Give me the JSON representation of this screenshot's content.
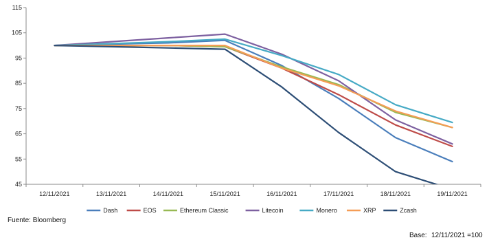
{
  "chart_data": {
    "type": "line",
    "title": "",
    "xlabel": "",
    "ylabel": "",
    "ylim": [
      45,
      115
    ],
    "yticks": [
      45,
      55,
      65,
      75,
      85,
      95,
      105,
      115
    ],
    "grid": false,
    "legend_position": "bottom",
    "categories": [
      "12/11/2021",
      "13/11/2021",
      "14/11/2021",
      "15/11/2021",
      "16/11/2021",
      "17/11/2021",
      "18/11/2021",
      "19/11/2021"
    ],
    "series": [
      {
        "name": "Dash",
        "color": "#4a7ebb",
        "values": [
          100,
          100.5,
          101,
          102,
          92,
          79,
          63.5,
          54
        ]
      },
      {
        "name": "EOS",
        "color": "#be4b48",
        "values": [
          100,
          100,
          100,
          99.5,
          91,
          80.5,
          68.5,
          60
        ]
      },
      {
        "name": "Ethereum Classic",
        "color": "#98b954",
        "values": [
          100,
          100,
          100,
          99.5,
          91.5,
          84.5,
          73.5,
          67.5
        ]
      },
      {
        "name": "Litecoin",
        "color": "#7d60a0",
        "values": [
          100,
          101.5,
          103,
          104.5,
          96.5,
          86,
          70.5,
          61
        ]
      },
      {
        "name": "Monero",
        "color": "#46aac5",
        "values": [
          100,
          100.7,
          101.5,
          102.5,
          96,
          88.5,
          76.5,
          69.5
        ]
      },
      {
        "name": "XRP",
        "color": "#f59d56",
        "values": [
          100,
          100,
          100,
          100,
          91,
          84,
          74,
          67.5
        ]
      },
      {
        "name": "Zcash",
        "color": "#2c4d75",
        "values": [
          100,
          99.5,
          99,
          98.5,
          83.5,
          65.5,
          50,
          43
        ]
      }
    ]
  },
  "notes": {
    "source": "Fuente: Bloomberg",
    "base_label": "Base:",
    "base_value": "12/11/2021 =100"
  }
}
